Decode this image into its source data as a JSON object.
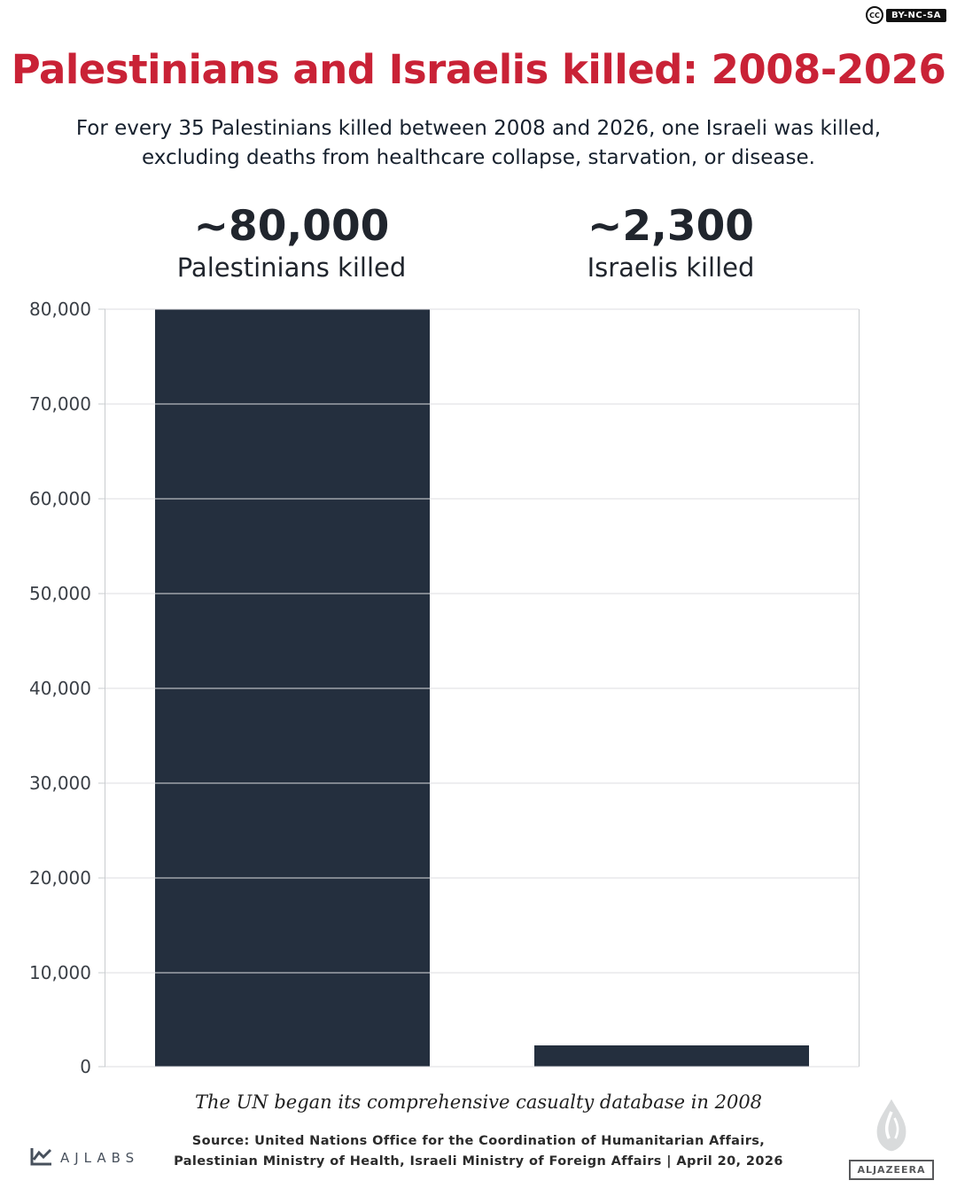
{
  "badge": {
    "cc": "CC",
    "license": "BY-NC-SA"
  },
  "header": {
    "title": "Palestinians and Israelis killed: 2008-2026",
    "subtitle": "For every 35 Palestinians killed between 2008 and 2026, one Israeli was killed, excluding deaths from healthcare collapse, starvation, or disease."
  },
  "stats": [
    {
      "value": "~80,000",
      "label": "Palestinians killed"
    },
    {
      "value": "~2,300",
      "label": "Israelis killed"
    }
  ],
  "chart_data": {
    "type": "bar",
    "categories": [
      "Palestinians killed",
      "Israelis killed"
    ],
    "values": [
      80000,
      2300
    ],
    "title": "Palestinians and Israelis killed: 2008-2026",
    "xlabel": "",
    "ylabel": "",
    "ylim": [
      0,
      80000
    ],
    "ytick_values": [
      0,
      10000,
      20000,
      30000,
      40000,
      50000,
      60000,
      70000,
      80000
    ],
    "ytick_labels": [
      "0",
      "10,000",
      "20,000",
      "30,000",
      "40,000",
      "50,000",
      "60,000",
      "70,000",
      "80,000"
    ],
    "grid": true,
    "legend": false,
    "bar_color": "#242f3e"
  },
  "footer": {
    "note": "The UN began its comprehensive casualty database in 2008",
    "source_line1": "Source: United Nations Office for the Coordination of Humanitarian Affairs,",
    "source_line2": "Palestinian Ministry of Health, Israeli Ministry of Foreign Affairs | April 20, 2026",
    "ajlabs": "AJLABS",
    "aljazeera": "ALJAZEERA"
  },
  "colors": {
    "accent_red": "#c92236",
    "bar": "#242f3e",
    "text": "#17212e",
    "gridline": "#dcdee0"
  }
}
